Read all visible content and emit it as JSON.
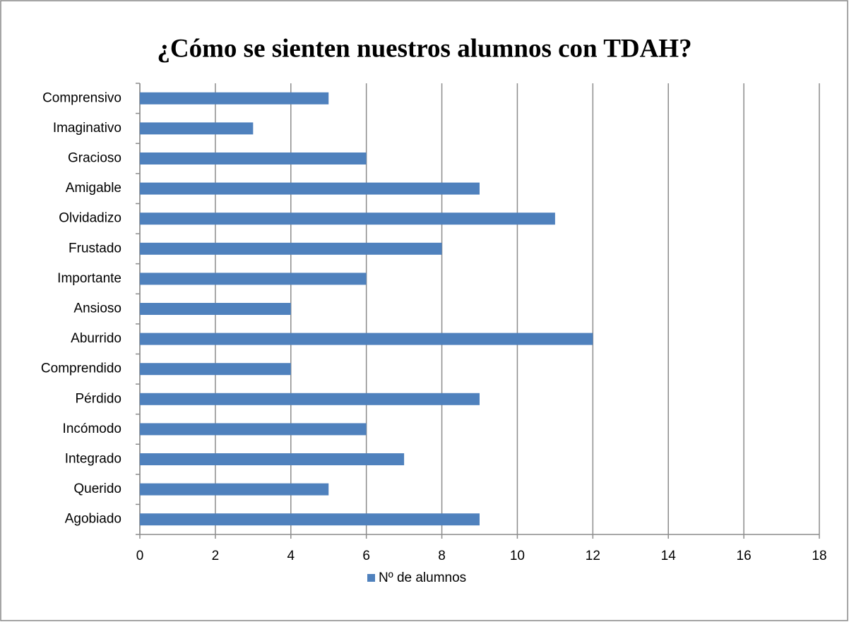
{
  "chart_data": {
    "type": "bar",
    "orientation": "horizontal",
    "title": "¿Cómo se sienten nuestros alumnos con TDAH?",
    "categories": [
      "Comprensivo",
      "Imaginativo",
      "Gracioso",
      "Amigable",
      "Olvidadizo",
      "Frustado",
      "Importante",
      "Ansioso",
      "Aburrido",
      "Comprendido",
      "Pérdido",
      "Incómodo",
      "Integrado",
      "Querido",
      "Agobiado"
    ],
    "series": [
      {
        "name": "Nº de alumnos",
        "color": "#4f81bd",
        "values": [
          5,
          3,
          6,
          9,
          11,
          8,
          6,
          4,
          12,
          4,
          9,
          6,
          7,
          5,
          9
        ]
      }
    ],
    "xlim": [
      0,
      18
    ],
    "xticks": [
      0,
      2,
      4,
      6,
      8,
      10,
      12,
      14,
      16,
      18
    ],
    "grid": true,
    "legend": "bottom"
  }
}
